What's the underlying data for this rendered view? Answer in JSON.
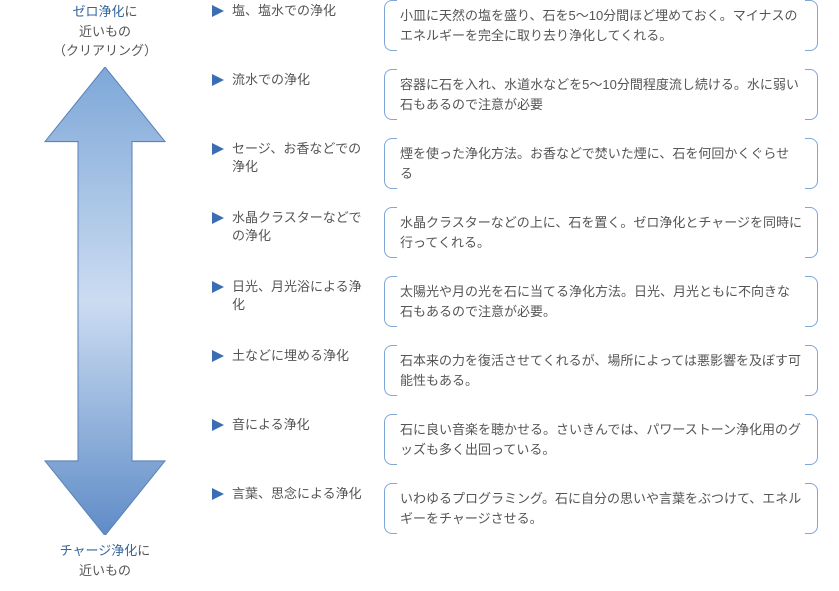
{
  "colors": {
    "accent": "#336699",
    "bullet": "#3b6db5",
    "bracket": "#7da6d9",
    "arrow_fill_top": "#7ea7d8",
    "arrow_fill_mid": "#b7cfea",
    "arrow_fill_bottom": "#5f8cc7",
    "arrow_stroke": "#5a82b8",
    "text": "#555555",
    "background": "#ffffff"
  },
  "fontsize": 13,
  "arrow_labels": {
    "top_hl": "ゼロ浄化",
    "top_suffix": "に",
    "top_line2": "近いもの",
    "top_line3": "（クリアリング）",
    "bottom_hl": "チャージ浄化",
    "bottom_suffix": "に",
    "bottom_line2": "近いもの"
  },
  "methods": [
    {
      "title": "塩、塩水での浄化",
      "desc": "小皿に天然の塩を盛り、石を5～10分間ほど埋めておく。マイナスのエネルギーを完全に取り去り浄化してくれる。"
    },
    {
      "title": "流水での浄化",
      "desc": "容器に石を入れ、水道水などを5～10分間程度流し続ける。水に弱い石もあるので注意が必要"
    },
    {
      "title": "セージ、お香などでの浄化",
      "desc": "煙を使った浄化方法。お香などで焚いた煙に、石を何回かくぐらせる"
    },
    {
      "title": "水晶クラスターなどでの浄化",
      "desc": "水晶クラスターなどの上に、石を置く。ゼロ浄化とチャージを同時に行ってくれる。"
    },
    {
      "title": "日光、月光浴による浄化",
      "desc": "太陽光や月の光を石に当てる浄化方法。日光、月光ともに不向きな石もあるので注意が必要。"
    },
    {
      "title": "土などに埋める浄化",
      "desc": "石本来の力を復活させてくれるが、場所によっては悪影響を及ぼす可能性もある。"
    },
    {
      "title": "音による浄化",
      "desc": "石に良い音楽を聴かせる。さいきんでは、パワーストーン浄化用のグッズも多く出回っている。"
    },
    {
      "title": "言葉、思念による浄化",
      "desc": "いわゆるプログラミング。石に自分の思いや言葉をぶつけて、エネルギーをチャージさせる。"
    }
  ]
}
